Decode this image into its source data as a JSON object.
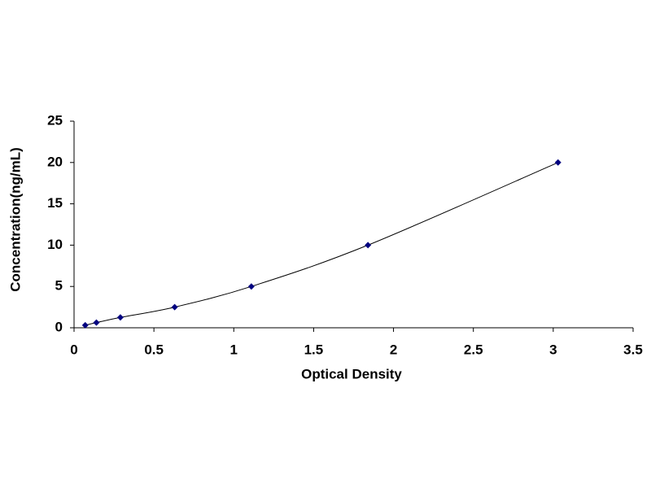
{
  "chart_data": {
    "type": "scatter",
    "x_label": "Optical Density",
    "y_label": "Concentration(ng/mL)",
    "series": [
      {
        "x": [
          0.07,
          0.14,
          0.29,
          0.63,
          1.11,
          1.84,
          3.03
        ],
        "values": [
          0.312,
          0.625,
          1.25,
          2.5,
          5,
          10,
          20
        ],
        "color": "#000080",
        "line_color": "#000000"
      }
    ],
    "xlim": [
      0,
      3.5
    ],
    "xticks": [
      0,
      0.5,
      1,
      1.5,
      2,
      2.5,
      3,
      3.5
    ],
    "ylim": [
      0,
      25
    ],
    "yticks": [
      0,
      5,
      10,
      15,
      20,
      25
    ],
    "grid": false
  }
}
